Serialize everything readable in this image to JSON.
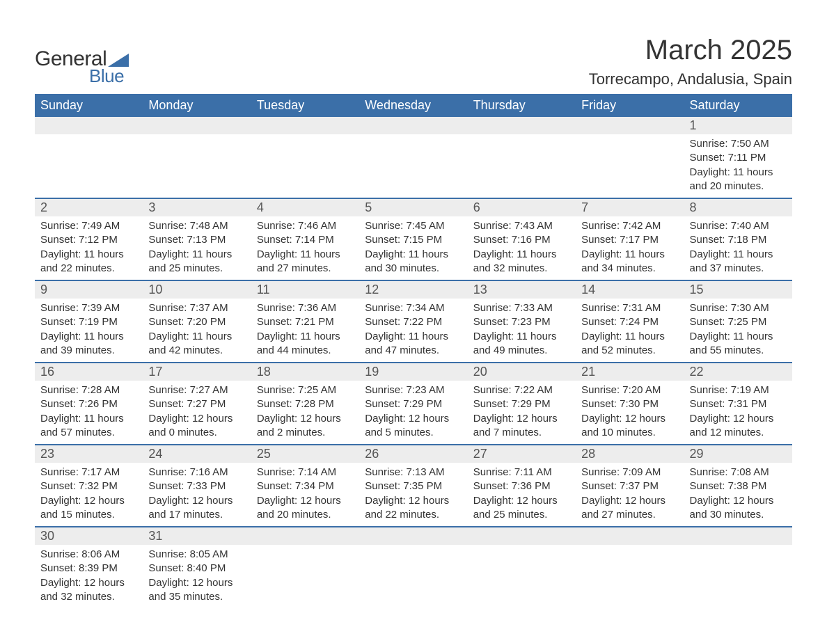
{
  "logo": {
    "text_general": "General",
    "text_blue": "Blue",
    "triangle_color": "#3b6fa8"
  },
  "header": {
    "month_title": "March 2025",
    "location": "Torrecampo, Andalusia, Spain"
  },
  "colors": {
    "header_bg": "#3b6fa8",
    "header_text": "#ffffff",
    "daynum_bg": "#ededed",
    "daynum_text": "#555555",
    "body_text": "#333333",
    "row_divider": "#3b6fa8",
    "page_bg": "#ffffff"
  },
  "typography": {
    "month_title_fontsize": 40,
    "location_fontsize": 22,
    "weekday_fontsize": 18,
    "daynum_fontsize": 18,
    "body_fontsize": 15
  },
  "calendar": {
    "type": "table",
    "weekdays": [
      "Sunday",
      "Monday",
      "Tuesday",
      "Wednesday",
      "Thursday",
      "Friday",
      "Saturday"
    ],
    "weeks": [
      [
        {
          "empty": true
        },
        {
          "empty": true
        },
        {
          "empty": true
        },
        {
          "empty": true
        },
        {
          "empty": true
        },
        {
          "empty": true
        },
        {
          "day": "1",
          "sunrise": "Sunrise: 7:50 AM",
          "sunset": "Sunset: 7:11 PM",
          "daylight1": "Daylight: 11 hours",
          "daylight2": "and 20 minutes."
        }
      ],
      [
        {
          "day": "2",
          "sunrise": "Sunrise: 7:49 AM",
          "sunset": "Sunset: 7:12 PM",
          "daylight1": "Daylight: 11 hours",
          "daylight2": "and 22 minutes."
        },
        {
          "day": "3",
          "sunrise": "Sunrise: 7:48 AM",
          "sunset": "Sunset: 7:13 PM",
          "daylight1": "Daylight: 11 hours",
          "daylight2": "and 25 minutes."
        },
        {
          "day": "4",
          "sunrise": "Sunrise: 7:46 AM",
          "sunset": "Sunset: 7:14 PM",
          "daylight1": "Daylight: 11 hours",
          "daylight2": "and 27 minutes."
        },
        {
          "day": "5",
          "sunrise": "Sunrise: 7:45 AM",
          "sunset": "Sunset: 7:15 PM",
          "daylight1": "Daylight: 11 hours",
          "daylight2": "and 30 minutes."
        },
        {
          "day": "6",
          "sunrise": "Sunrise: 7:43 AM",
          "sunset": "Sunset: 7:16 PM",
          "daylight1": "Daylight: 11 hours",
          "daylight2": "and 32 minutes."
        },
        {
          "day": "7",
          "sunrise": "Sunrise: 7:42 AM",
          "sunset": "Sunset: 7:17 PM",
          "daylight1": "Daylight: 11 hours",
          "daylight2": "and 34 minutes."
        },
        {
          "day": "8",
          "sunrise": "Sunrise: 7:40 AM",
          "sunset": "Sunset: 7:18 PM",
          "daylight1": "Daylight: 11 hours",
          "daylight2": "and 37 minutes."
        }
      ],
      [
        {
          "day": "9",
          "sunrise": "Sunrise: 7:39 AM",
          "sunset": "Sunset: 7:19 PM",
          "daylight1": "Daylight: 11 hours",
          "daylight2": "and 39 minutes."
        },
        {
          "day": "10",
          "sunrise": "Sunrise: 7:37 AM",
          "sunset": "Sunset: 7:20 PM",
          "daylight1": "Daylight: 11 hours",
          "daylight2": "and 42 minutes."
        },
        {
          "day": "11",
          "sunrise": "Sunrise: 7:36 AM",
          "sunset": "Sunset: 7:21 PM",
          "daylight1": "Daylight: 11 hours",
          "daylight2": "and 44 minutes."
        },
        {
          "day": "12",
          "sunrise": "Sunrise: 7:34 AM",
          "sunset": "Sunset: 7:22 PM",
          "daylight1": "Daylight: 11 hours",
          "daylight2": "and 47 minutes."
        },
        {
          "day": "13",
          "sunrise": "Sunrise: 7:33 AM",
          "sunset": "Sunset: 7:23 PM",
          "daylight1": "Daylight: 11 hours",
          "daylight2": "and 49 minutes."
        },
        {
          "day": "14",
          "sunrise": "Sunrise: 7:31 AM",
          "sunset": "Sunset: 7:24 PM",
          "daylight1": "Daylight: 11 hours",
          "daylight2": "and 52 minutes."
        },
        {
          "day": "15",
          "sunrise": "Sunrise: 7:30 AM",
          "sunset": "Sunset: 7:25 PM",
          "daylight1": "Daylight: 11 hours",
          "daylight2": "and 55 minutes."
        }
      ],
      [
        {
          "day": "16",
          "sunrise": "Sunrise: 7:28 AM",
          "sunset": "Sunset: 7:26 PM",
          "daylight1": "Daylight: 11 hours",
          "daylight2": "and 57 minutes."
        },
        {
          "day": "17",
          "sunrise": "Sunrise: 7:27 AM",
          "sunset": "Sunset: 7:27 PM",
          "daylight1": "Daylight: 12 hours",
          "daylight2": "and 0 minutes."
        },
        {
          "day": "18",
          "sunrise": "Sunrise: 7:25 AM",
          "sunset": "Sunset: 7:28 PM",
          "daylight1": "Daylight: 12 hours",
          "daylight2": "and 2 minutes."
        },
        {
          "day": "19",
          "sunrise": "Sunrise: 7:23 AM",
          "sunset": "Sunset: 7:29 PM",
          "daylight1": "Daylight: 12 hours",
          "daylight2": "and 5 minutes."
        },
        {
          "day": "20",
          "sunrise": "Sunrise: 7:22 AM",
          "sunset": "Sunset: 7:29 PM",
          "daylight1": "Daylight: 12 hours",
          "daylight2": "and 7 minutes."
        },
        {
          "day": "21",
          "sunrise": "Sunrise: 7:20 AM",
          "sunset": "Sunset: 7:30 PM",
          "daylight1": "Daylight: 12 hours",
          "daylight2": "and 10 minutes."
        },
        {
          "day": "22",
          "sunrise": "Sunrise: 7:19 AM",
          "sunset": "Sunset: 7:31 PM",
          "daylight1": "Daylight: 12 hours",
          "daylight2": "and 12 minutes."
        }
      ],
      [
        {
          "day": "23",
          "sunrise": "Sunrise: 7:17 AM",
          "sunset": "Sunset: 7:32 PM",
          "daylight1": "Daylight: 12 hours",
          "daylight2": "and 15 minutes."
        },
        {
          "day": "24",
          "sunrise": "Sunrise: 7:16 AM",
          "sunset": "Sunset: 7:33 PM",
          "daylight1": "Daylight: 12 hours",
          "daylight2": "and 17 minutes."
        },
        {
          "day": "25",
          "sunrise": "Sunrise: 7:14 AM",
          "sunset": "Sunset: 7:34 PM",
          "daylight1": "Daylight: 12 hours",
          "daylight2": "and 20 minutes."
        },
        {
          "day": "26",
          "sunrise": "Sunrise: 7:13 AM",
          "sunset": "Sunset: 7:35 PM",
          "daylight1": "Daylight: 12 hours",
          "daylight2": "and 22 minutes."
        },
        {
          "day": "27",
          "sunrise": "Sunrise: 7:11 AM",
          "sunset": "Sunset: 7:36 PM",
          "daylight1": "Daylight: 12 hours",
          "daylight2": "and 25 minutes."
        },
        {
          "day": "28",
          "sunrise": "Sunrise: 7:09 AM",
          "sunset": "Sunset: 7:37 PM",
          "daylight1": "Daylight: 12 hours",
          "daylight2": "and 27 minutes."
        },
        {
          "day": "29",
          "sunrise": "Sunrise: 7:08 AM",
          "sunset": "Sunset: 7:38 PM",
          "daylight1": "Daylight: 12 hours",
          "daylight2": "and 30 minutes."
        }
      ],
      [
        {
          "day": "30",
          "sunrise": "Sunrise: 8:06 AM",
          "sunset": "Sunset: 8:39 PM",
          "daylight1": "Daylight: 12 hours",
          "daylight2": "and 32 minutes."
        },
        {
          "day": "31",
          "sunrise": "Sunrise: 8:05 AM",
          "sunset": "Sunset: 8:40 PM",
          "daylight1": "Daylight: 12 hours",
          "daylight2": "and 35 minutes."
        },
        {
          "empty": true
        },
        {
          "empty": true
        },
        {
          "empty": true
        },
        {
          "empty": true
        },
        {
          "empty": true
        }
      ]
    ]
  }
}
